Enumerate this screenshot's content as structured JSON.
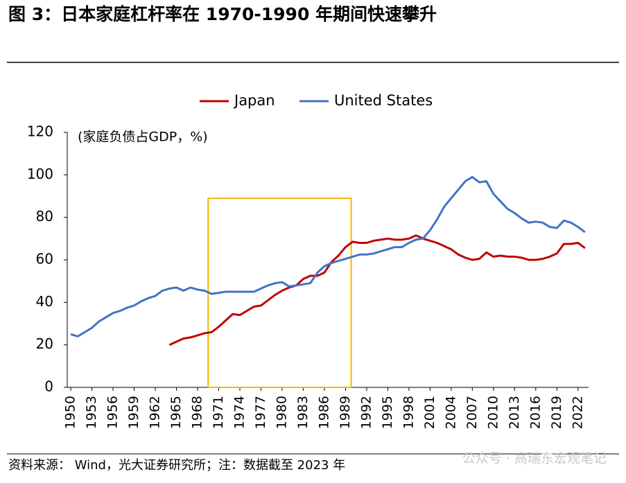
{
  "chart_data": {
    "type": "line",
    "title": "图 3：日本家庭杠杆率在 1970-1990 年期间快速攀升",
    "y_label": "(家庭负债占GDP，%)",
    "source": "资料来源：  Wind，光大证券研究所；注：数据截至 2023 年",
    "watermark": "公众号 · 高瑞东宏观笔记",
    "x": [
      1950,
      1951,
      1952,
      1953,
      1954,
      1955,
      1956,
      1957,
      1958,
      1959,
      1960,
      1961,
      1962,
      1963,
      1964,
      1965,
      1966,
      1967,
      1968,
      1969,
      1970,
      1971,
      1972,
      1973,
      1974,
      1975,
      1976,
      1977,
      1978,
      1979,
      1980,
      1981,
      1982,
      1983,
      1984,
      1985,
      1986,
      1987,
      1988,
      1989,
      1990,
      1991,
      1992,
      1993,
      1994,
      1995,
      1996,
      1997,
      1998,
      1999,
      2000,
      2001,
      2002,
      2003,
      2004,
      2005,
      2006,
      2007,
      2008,
      2009,
      2010,
      2011,
      2012,
      2013,
      2014,
      2015,
      2016,
      2017,
      2018,
      2019,
      2020,
      2021,
      2022,
      2023
    ],
    "series": [
      {
        "name": "Japan",
        "color": "#c00000",
        "values": [
          null,
          null,
          null,
          null,
          null,
          null,
          null,
          null,
          null,
          null,
          null,
          null,
          null,
          null,
          20,
          21.5,
          23,
          23.5,
          24.5,
          25.5,
          26,
          28.5,
          31.5,
          34.5,
          34,
          36,
          38,
          38.5,
          41,
          43.5,
          45.5,
          47,
          48,
          51,
          52.5,
          52.5,
          54,
          59,
          62,
          66,
          68.5,
          68,
          68,
          69,
          69.5,
          70,
          69.5,
          69.5,
          70,
          71.5,
          70,
          69,
          68,
          66.5,
          65,
          62.5,
          61,
          60,
          60.5,
          63.5,
          61.5,
          62,
          61.5,
          61.5,
          61,
          60,
          60,
          60.5,
          61.5,
          63,
          67.5,
          67.5,
          68,
          65.5
        ]
      },
      {
        "name": "United States",
        "color": "#4472c4",
        "values": [
          25,
          24,
          26,
          28,
          31,
          33,
          35,
          36,
          37.5,
          38.5,
          40.5,
          42,
          43,
          45.5,
          46.5,
          47,
          45.5,
          47,
          46,
          45.5,
          44,
          44.5,
          45,
          45,
          45,
          45,
          45,
          46.5,
          48,
          49,
          49.5,
          47.5,
          48,
          48.5,
          49,
          54,
          57,
          58.5,
          59.5,
          60.5,
          61.5,
          62.5,
          62.5,
          63,
          64,
          65,
          66,
          66,
          68,
          69.5,
          70,
          74,
          79,
          85,
          89,
          93,
          97,
          99,
          96.5,
          97,
          91,
          87.5,
          84,
          82,
          79.5,
          77.5,
          78,
          77.5,
          75.5,
          75,
          78.5,
          77.5,
          75.5,
          73
        ]
      }
    ],
    "xlim": [
      1949.5,
      2023.5
    ],
    "xticks": [
      1950,
      1953,
      1956,
      1959,
      1962,
      1965,
      1968,
      1971,
      1974,
      1977,
      1980,
      1983,
      1986,
      1989,
      1992,
      1995,
      1998,
      2001,
      2004,
      2007,
      2010,
      2013,
      2016,
      2019,
      2022
    ],
    "ylim": [
      0,
      120
    ],
    "yticks": [
      0,
      20,
      40,
      60,
      80,
      100,
      120
    ],
    "grid": false,
    "legend": "top",
    "highlight_box": {
      "xlim": [
        1969.5,
        1989.8
      ],
      "ylim": [
        0,
        89
      ],
      "color": "#f5b800"
    }
  }
}
